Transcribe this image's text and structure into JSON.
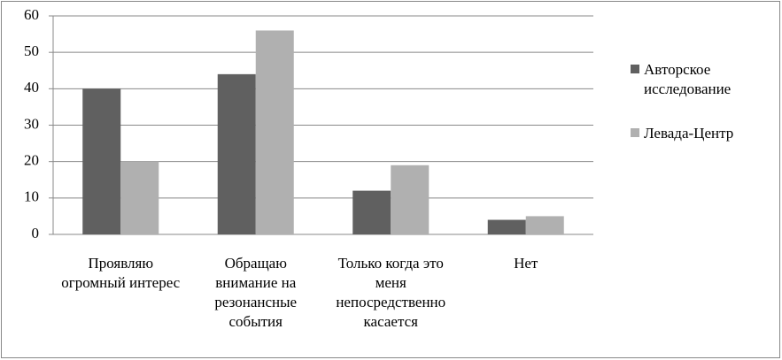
{
  "chart_data": {
    "type": "bar",
    "categories": [
      "Проявляю огромный интерес",
      "Обращаю внимание на резонансные события",
      "Только когда это меня непосредственно касается",
      "Нет"
    ],
    "series": [
      {
        "name": "Авторское исследование",
        "color": "#606060",
        "values": [
          40,
          44,
          12,
          4
        ]
      },
      {
        "name": "Левада-Центр",
        "color": "#b0b0b0",
        "values": [
          20,
          56,
          19,
          5
        ]
      }
    ],
    "ylim": [
      0,
      60
    ],
    "yticks": [
      0,
      10,
      20,
      30,
      40,
      50,
      60
    ],
    "grid": true,
    "legend": "right"
  }
}
